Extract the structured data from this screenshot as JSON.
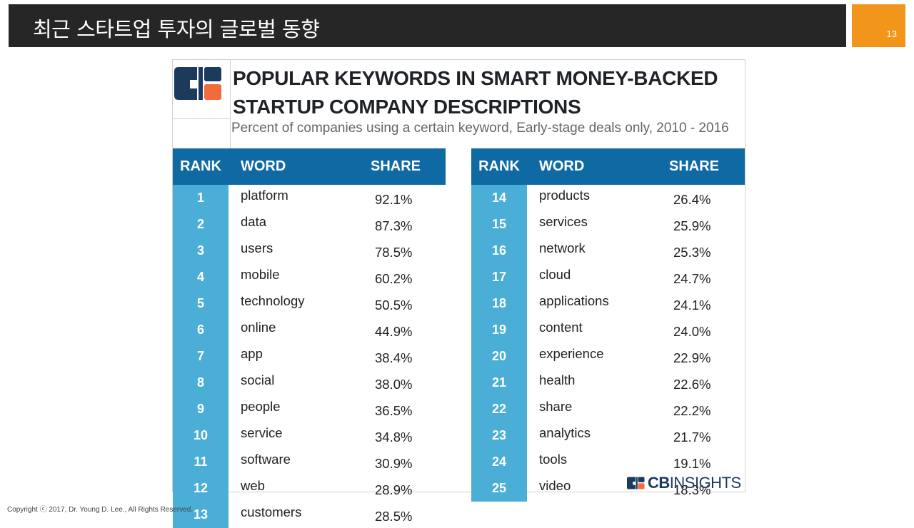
{
  "slide": {
    "title": "최근 스타트업 투자의 글로벌 동향",
    "page_number": "13",
    "copyright": "Copyright ⓒ 2017, Dr. Young D. Lee., All Rights Reserved.",
    "colors": {
      "title_bar": "#262626",
      "page_badge": "#f2951b"
    }
  },
  "figure": {
    "title_line1": "POPULAR KEYWORDS IN SMART MONEY-BACKED",
    "title_line2": "STARTUP COMPANY DESCRIPTIONS",
    "subtitle": "Percent of companies using a certain keyword, Early-stage deals only, 2010 - 2016",
    "logo_icon": "cb-insights-logo-icon",
    "brand_cb": "CB",
    "brand_insights": "INSIGHTS",
    "colors": {
      "header": "#0f6aa3",
      "rank_column": "#4aaed6",
      "logo_dark": "#1b3a5c",
      "logo_accent": "#f26b3a"
    },
    "headers": {
      "rank": "RANK",
      "word": "WORD",
      "share": "SHARE"
    },
    "left_rows": [
      {
        "rank": "1",
        "word": "platform",
        "share": "92.1%"
      },
      {
        "rank": "2",
        "word": "data",
        "share": "87.3%"
      },
      {
        "rank": "3",
        "word": "users",
        "share": "78.5%"
      },
      {
        "rank": "4",
        "word": "mobile",
        "share": "60.2%"
      },
      {
        "rank": "5",
        "word": "technology",
        "share": "50.5%"
      },
      {
        "rank": "6",
        "word": "online",
        "share": "44.9%"
      },
      {
        "rank": "7",
        "word": "app",
        "share": "38.4%"
      },
      {
        "rank": "8",
        "word": "social",
        "share": "38.0%"
      },
      {
        "rank": "9",
        "word": "people",
        "share": "36.5%"
      },
      {
        "rank": "10",
        "word": "service",
        "share": "34.8%"
      },
      {
        "rank": "11",
        "word": "software",
        "share": "30.9%"
      },
      {
        "rank": "12",
        "word": "web",
        "share": "28.9%"
      },
      {
        "rank": "13",
        "word": "customers",
        "share": "28.5%"
      }
    ],
    "right_rows": [
      {
        "rank": "14",
        "word": "products",
        "share": "26.4%"
      },
      {
        "rank": "15",
        "word": "services",
        "share": "25.9%"
      },
      {
        "rank": "16",
        "word": "network",
        "share": "25.3%"
      },
      {
        "rank": "17",
        "word": "cloud",
        "share": "24.7%"
      },
      {
        "rank": "18",
        "word": "applications",
        "share": "24.1%"
      },
      {
        "rank": "19",
        "word": "content",
        "share": "24.0%"
      },
      {
        "rank": "20",
        "word": "experience",
        "share": "22.9%"
      },
      {
        "rank": "21",
        "word": "health",
        "share": "22.6%"
      },
      {
        "rank": "22",
        "word": "share",
        "share": "22.2%"
      },
      {
        "rank": "23",
        "word": "analytics",
        "share": "21.7%"
      },
      {
        "rank": "24",
        "word": "tools",
        "share": "19.1%"
      },
      {
        "rank": "25",
        "word": "video",
        "share": "18.3%"
      }
    ]
  }
}
